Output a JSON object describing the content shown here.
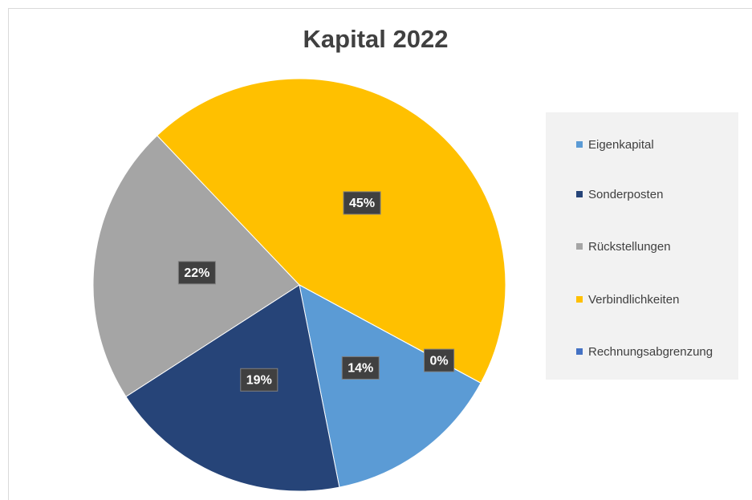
{
  "chart_data": {
    "type": "pie",
    "title": "Kapital 2022",
    "categories": [
      "Eigenkapital",
      "Sonderposten",
      "Rückstellungen",
      "Verbindlichkeiten",
      "Rechnungsabgrenzung"
    ],
    "values": [
      14,
      19,
      22,
      45,
      0
    ],
    "value_labels": [
      "14%",
      "19%",
      "22%",
      "45%",
      "0%"
    ],
    "colors": [
      "#5b9bd5",
      "#264478",
      "#a5a5a5",
      "#ffc000",
      "#4472c4"
    ],
    "legend": "right"
  }
}
